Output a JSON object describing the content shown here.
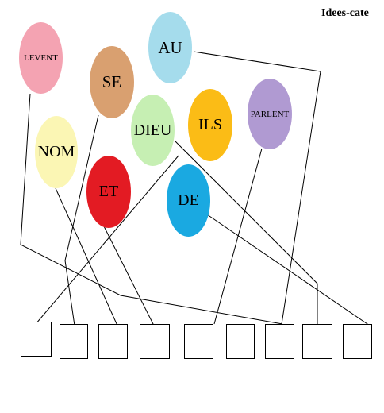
{
  "title": "Idees-cate",
  "words": [
    {
      "id": "levent",
      "label": "LEVENT",
      "color": "#f4a3b2"
    },
    {
      "id": "se",
      "label": "SE",
      "color": "#d9a070"
    },
    {
      "id": "au",
      "label": "AU",
      "color": "#a5dcec"
    },
    {
      "id": "nom",
      "label": "NOM",
      "color": "#fbf6b4"
    },
    {
      "id": "dieu",
      "label": "DIEU",
      "color": "#c6efb3"
    },
    {
      "id": "et",
      "label": "ET",
      "color": "#e31b23"
    },
    {
      "id": "ils",
      "label": "ILS",
      "color": "#fbbc16"
    },
    {
      "id": "de",
      "label": "DE",
      "color": "#1aa9e1"
    },
    {
      "id": "parlent",
      "label": "PARLENT",
      "color": "#b09ad2"
    }
  ],
  "slot_count": 9
}
